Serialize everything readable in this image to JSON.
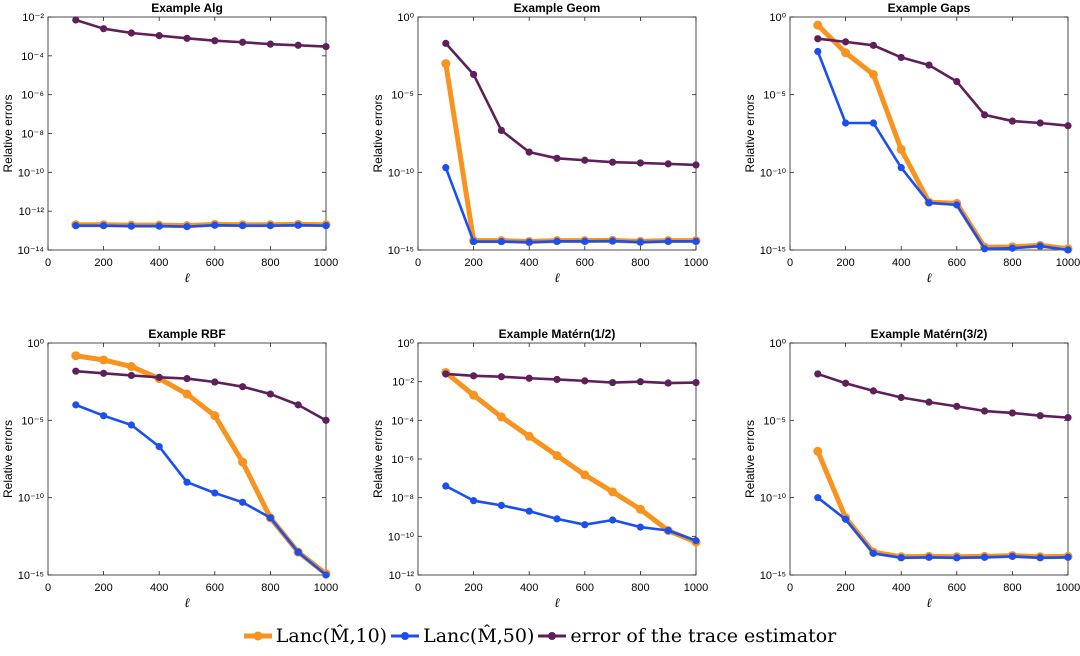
{
  "colors": {
    "lanc10": "#F7931E",
    "lanc50": "#1A4FF0",
    "trace": "#5E1F5A"
  },
  "legend": {
    "lanc10_label": "Lanc(M̂,10)",
    "lanc50_label": "Lanc(M̂,50)",
    "trace_label": "error of the trace estimator"
  },
  "chart_data": [
    {
      "type": "line",
      "title": "Example Alg",
      "xlabel": "ℓ",
      "ylabel": "Relative errors",
      "yscale": "log",
      "xlim": [
        0,
        1000
      ],
      "xticks": [
        0,
        200,
        400,
        600,
        800,
        1000
      ],
      "ylim_exp": [
        -14,
        -2
      ],
      "yticks_exp": [
        -14,
        -12,
        -10,
        -8,
        -6,
        -4,
        -2
      ],
      "x": [
        100,
        200,
        300,
        400,
        500,
        600,
        700,
        800,
        900,
        1000
      ],
      "series": [
        {
          "name": "Lanc(M̂,10)",
          "key": "lanc10",
          "values": [
            2e-13,
            2e-13,
            1.9e-13,
            1.9e-13,
            1.8e-13,
            2.1e-13,
            2e-13,
            2e-13,
            2.1e-13,
            2e-13
          ]
        },
        {
          "name": "Lanc(M̂,50)",
          "key": "lanc50",
          "values": [
            1.8e-13,
            1.8e-13,
            1.7e-13,
            1.7e-13,
            1.6e-13,
            1.9e-13,
            1.8e-13,
            1.8e-13,
            1.9e-13,
            1.8e-13
          ]
        },
        {
          "name": "error of the trace estimator",
          "key": "trace",
          "values": [
            0.007,
            0.0025,
            0.0015,
            0.0011,
            0.0008,
            0.0006,
            0.0005,
            0.0004,
            0.00035,
            0.0003
          ]
        }
      ]
    },
    {
      "type": "line",
      "title": "Example Geom",
      "xlabel": "ℓ",
      "ylabel": "Relative errors",
      "yscale": "log",
      "xlim": [
        0,
        1000
      ],
      "xticks": [
        0,
        200,
        400,
        600,
        800,
        1000
      ],
      "ylim_exp": [
        -15,
        0
      ],
      "yticks_exp": [
        -15,
        -10,
        -5,
        0
      ],
      "x": [
        100,
        200,
        300,
        400,
        500,
        600,
        700,
        800,
        900,
        1000
      ],
      "series": [
        {
          "name": "Lanc(M̂,10)",
          "key": "lanc10",
          "values": [
            0.001,
            4e-15,
            4e-15,
            3.5e-15,
            4e-15,
            4e-15,
            4.2e-15,
            3.6e-15,
            4e-15,
            4e-15
          ]
        },
        {
          "name": "Lanc(M̂,50)",
          "key": "lanc50",
          "values": [
            2e-10,
            3.5e-15,
            3.5e-15,
            3.2e-15,
            3.6e-15,
            3.6e-15,
            3.8e-15,
            3.2e-15,
            3.6e-15,
            3.6e-15
          ]
        },
        {
          "name": "error of the trace estimator",
          "key": "trace",
          "values": [
            0.02,
            0.0002,
            5e-08,
            2e-09,
            8e-10,
            6e-10,
            4.5e-10,
            4e-10,
            3.5e-10,
            3e-10
          ]
        }
      ]
    },
    {
      "type": "line",
      "title": "Example Gaps",
      "xlabel": "ℓ",
      "ylabel": "Relative errors",
      "yscale": "log",
      "xlim": [
        0,
        1000
      ],
      "xticks": [
        0,
        200,
        400,
        600,
        800,
        1000
      ],
      "ylim_exp": [
        -15,
        0
      ],
      "yticks_exp": [
        -15,
        -10,
        -5,
        0
      ],
      "x": [
        100,
        200,
        300,
        400,
        500,
        600,
        700,
        800,
        900,
        1000
      ],
      "series": [
        {
          "name": "Lanc(M̂,10)",
          "key": "lanc10",
          "values": [
            0.3,
            0.005,
            0.0002,
            3e-09,
            1.2e-12,
            1e-12,
            1.5e-15,
            1.6e-15,
            2e-15,
            1.2e-15
          ]
        },
        {
          "name": "Lanc(M̂,50)",
          "key": "lanc50",
          "values": [
            0.006,
            1.5e-07,
            1.5e-07,
            2e-10,
            1.1e-12,
            8e-13,
            1.2e-15,
            1.3e-15,
            1.8e-15,
            1e-15
          ]
        },
        {
          "name": "error of the trace estimator",
          "key": "trace",
          "values": [
            0.04,
            0.025,
            0.015,
            0.0025,
            0.0008,
            7e-05,
            5e-07,
            2e-07,
            1.5e-07,
            1e-07
          ]
        }
      ]
    },
    {
      "type": "line",
      "title": "Example RBF",
      "xlabel": "ℓ",
      "ylabel": "Relative errors",
      "yscale": "log",
      "xlim": [
        0,
        1000
      ],
      "xticks": [
        0,
        200,
        400,
        600,
        800,
        1000
      ],
      "ylim_exp": [
        -15,
        0
      ],
      "yticks_exp": [
        -15,
        -10,
        -5,
        0
      ],
      "x": [
        100,
        200,
        300,
        400,
        500,
        600,
        700,
        800,
        900,
        1000
      ],
      "series": [
        {
          "name": "Lanc(M̂,10)",
          "key": "lanc10",
          "values": [
            0.15,
            0.08,
            0.03,
            0.005,
            0.0005,
            2e-05,
            2e-08,
            5e-12,
            3e-14,
            1.2e-15
          ]
        },
        {
          "name": "Lanc(M̂,50)",
          "key": "lanc50",
          "values": [
            0.0001,
            2e-05,
            5e-06,
            2e-07,
            1e-09,
            2e-10,
            5e-11,
            5e-12,
            3e-14,
            1e-15
          ]
        },
        {
          "name": "error of the trace estimator",
          "key": "trace",
          "values": [
            0.015,
            0.011,
            0.008,
            0.006,
            0.005,
            0.003,
            0.0015,
            0.0005,
            0.0001,
            1e-05
          ]
        }
      ]
    },
    {
      "type": "line",
      "title": "Example Matérn(1/2)",
      "xlabel": "ℓ",
      "ylabel": "Relative errors",
      "yscale": "log",
      "xlim": [
        0,
        1000
      ],
      "xticks": [
        0,
        200,
        400,
        600,
        800,
        1000
      ],
      "ylim_exp": [
        -12,
        0
      ],
      "yticks_exp": [
        -12,
        -10,
        -8,
        -6,
        -4,
        -2,
        0
      ],
      "x": [
        100,
        200,
        300,
        400,
        500,
        600,
        700,
        800,
        900,
        1000
      ],
      "series": [
        {
          "name": "Lanc(M̂,10)",
          "key": "lanc10",
          "values": [
            0.03,
            0.002,
            0.00015,
            1.5e-05,
            1.5e-06,
            1.5e-07,
            2e-08,
            2.5e-09,
            2e-10,
            5e-11
          ]
        },
        {
          "name": "Lanc(M̂,50)",
          "key": "lanc50",
          "values": [
            4e-08,
            7e-09,
            4e-09,
            2e-09,
            8e-10,
            4e-10,
            7e-10,
            3e-10,
            2e-10,
            6e-11
          ]
        },
        {
          "name": "error of the trace estimator",
          "key": "trace",
          "values": [
            0.025,
            0.02,
            0.018,
            0.015,
            0.013,
            0.011,
            0.009,
            0.01,
            0.0085,
            0.009
          ]
        }
      ]
    },
    {
      "type": "line",
      "title": "Example Matérn(3/2)",
      "xlabel": "ℓ",
      "ylabel": "Relative errors",
      "yscale": "log",
      "xlim": [
        0,
        1000
      ],
      "xticks": [
        0,
        200,
        400,
        600,
        800,
        1000
      ],
      "ylim_exp": [
        -15,
        0
      ],
      "yticks_exp": [
        -15,
        -10,
        -5,
        0
      ],
      "x": [
        100,
        200,
        300,
        400,
        500,
        600,
        700,
        800,
        900,
        1000
      ],
      "series": [
        {
          "name": "Lanc(M̂,10)",
          "key": "lanc10",
          "values": [
            1e-07,
            5e-12,
            3e-14,
            1.5e-14,
            1.6e-14,
            1.5e-14,
            1.6e-14,
            1.8e-14,
            1.5e-14,
            1.6e-14
          ]
        },
        {
          "name": "Lanc(M̂,50)",
          "key": "lanc50",
          "values": [
            1e-10,
            4e-12,
            2.5e-14,
            1.3e-14,
            1.4e-14,
            1.3e-14,
            1.4e-14,
            1.6e-14,
            1.3e-14,
            1.4e-14
          ]
        },
        {
          "name": "error of the trace estimator",
          "key": "trace",
          "values": [
            0.01,
            0.0025,
            0.0008,
            0.0003,
            0.00015,
            8e-05,
            4e-05,
            3e-05,
            2e-05,
            1.5e-05
          ]
        }
      ]
    }
  ]
}
